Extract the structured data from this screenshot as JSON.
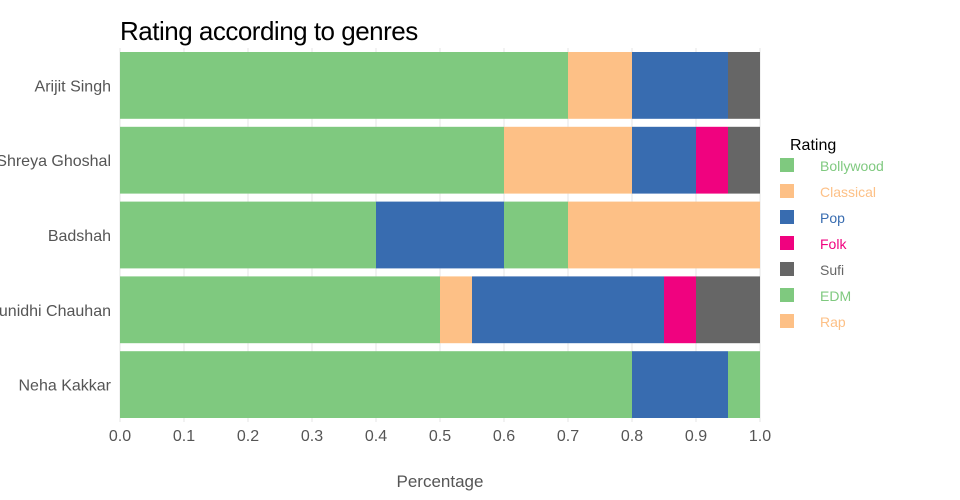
{
  "chart_data": {
    "type": "bar",
    "orientation": "horizontal",
    "stacked": true,
    "title": "Rating according to genres",
    "xlabel": "Percentage",
    "ylabel": "",
    "xlim": [
      0,
      1.0
    ],
    "xticks": [
      "0.0",
      "0.1",
      "0.2",
      "0.3",
      "0.4",
      "0.5",
      "0.6",
      "0.7",
      "0.8",
      "0.9",
      "1.0"
    ],
    "grid": true,
    "legend_title": "Rating",
    "legend_position": "right",
    "legend": [
      {
        "name": "Bollywood",
        "color": "#7fc97f"
      },
      {
        "name": "Classical",
        "color": "#fdc086"
      },
      {
        "name": "Pop",
        "color": "#386cb0"
      },
      {
        "name": "Folk",
        "color": "#f0027f"
      },
      {
        "name": "Sufi",
        "color": "#666666"
      },
      {
        "name": "EDM",
        "color": "#7fc97f"
      },
      {
        "name": "Rap",
        "color": "#fdc086"
      }
    ],
    "categories": [
      "Arijit Singh",
      "Shreya Ghoshal",
      "Badshah",
      "Sunidhi Chauhan",
      "Neha Kakkar"
    ],
    "segments": [
      [
        {
          "genre": "Bollywood",
          "value": 0.7
        },
        {
          "genre": "Classical",
          "value": 0.1
        },
        {
          "genre": "Pop",
          "value": 0.15
        },
        {
          "genre": "Sufi",
          "value": 0.05
        }
      ],
      [
        {
          "genre": "Bollywood",
          "value": 0.6
        },
        {
          "genre": "Classical",
          "value": 0.2
        },
        {
          "genre": "Pop",
          "value": 0.1
        },
        {
          "genre": "Folk",
          "value": 0.05
        },
        {
          "genre": "Sufi",
          "value": 0.05
        }
      ],
      [
        {
          "genre": "Bollywood",
          "value": 0.4
        },
        {
          "genre": "Pop",
          "value": 0.2
        },
        {
          "genre": "EDM",
          "value": 0.1
        },
        {
          "genre": "Rap",
          "value": 0.3
        }
      ],
      [
        {
          "genre": "Bollywood",
          "value": 0.5
        },
        {
          "genre": "Classical",
          "value": 0.05
        },
        {
          "genre": "Pop",
          "value": 0.3
        },
        {
          "genre": "Folk",
          "value": 0.05
        },
        {
          "genre": "Sufi",
          "value": 0.1
        }
      ],
      [
        {
          "genre": "Bollywood",
          "value": 0.8
        },
        {
          "genre": "Pop",
          "value": 0.15
        },
        {
          "genre": "EDM",
          "value": 0.05
        }
      ]
    ]
  }
}
